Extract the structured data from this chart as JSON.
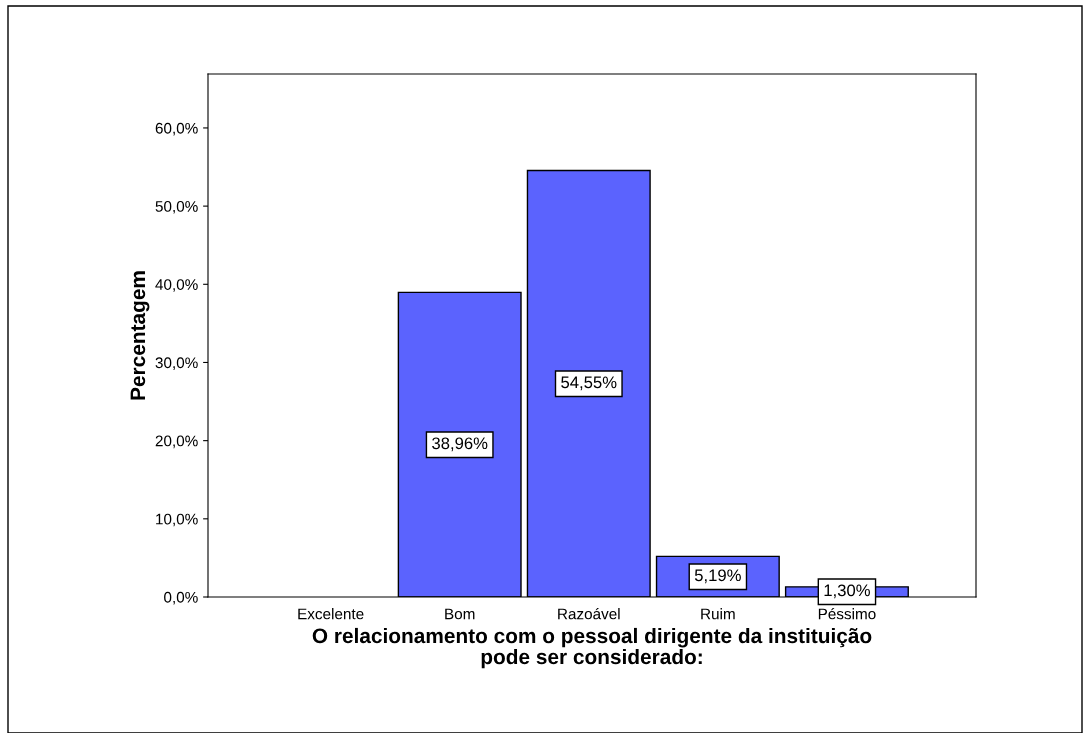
{
  "chart_data": {
    "type": "bar",
    "categories": [
      "Excelente",
      "Bom",
      "Razoável",
      "Ruim",
      "Péssimo"
    ],
    "values": [
      0,
      38.96,
      54.55,
      5.19,
      1.3
    ],
    "value_labels": [
      null,
      "38,96%",
      "54,55%",
      "5,19%",
      "1,30%"
    ],
    "color": "#5b63fe",
    "xlabel": "O relacionamento com o pessoal dirigente da instituição\npode ser considerado:",
    "ylabel": "Percentagem",
    "ylim": [
      0,
      66.9
    ],
    "yticks": [
      {
        "value": 0,
        "label": "0,0%"
      },
      {
        "value": 10,
        "label": "10,0%"
      },
      {
        "value": 20,
        "label": "20,0%"
      },
      {
        "value": 30,
        "label": "30,0%"
      },
      {
        "value": 40,
        "label": "40,0%"
      },
      {
        "value": 50,
        "label": "50,0%"
      },
      {
        "value": 60,
        "label": "60,0%"
      }
    ],
    "grid": false,
    "legend": false
  }
}
